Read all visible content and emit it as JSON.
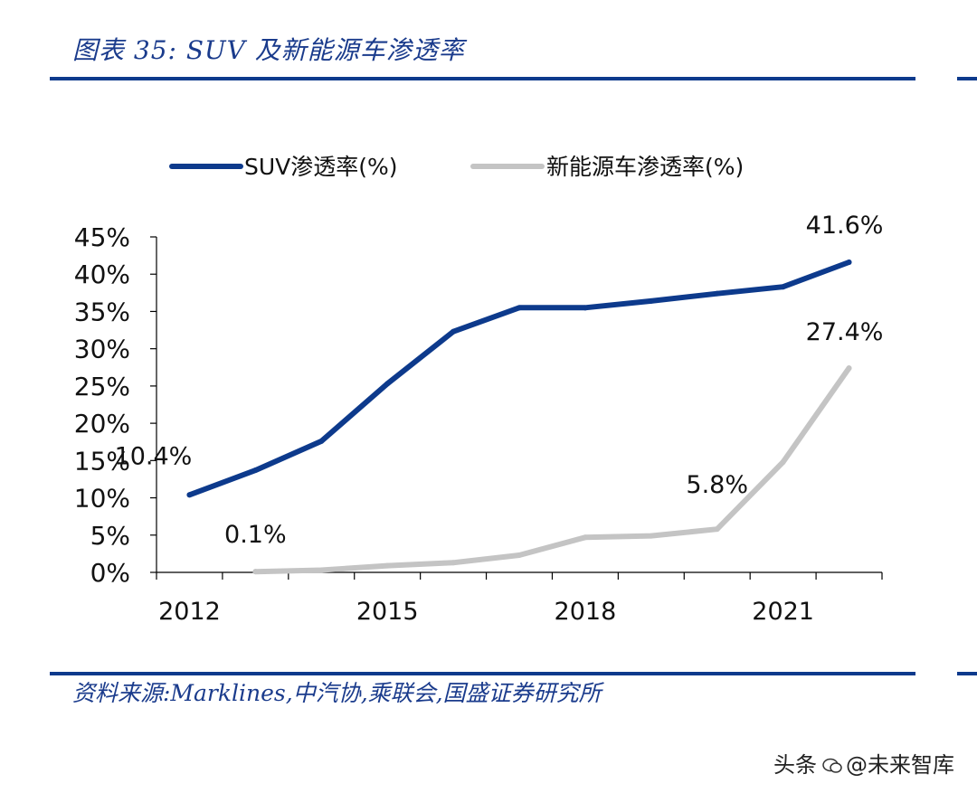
{
  "header": {
    "title": "图表 35:  SUV 及新能源车渗透率"
  },
  "footer": {
    "source": "资料来源:Marklines,中汽协,乘联会,国盛证券研究所"
  },
  "watermark": {
    "platform": "头条",
    "account": "@未来智库"
  },
  "colors": {
    "accent": "#0d3a8c",
    "suv": "#0d3a8c",
    "nev": "#c4c4c4"
  },
  "chart_data": {
    "type": "line",
    "title": "",
    "xlabel": "",
    "ylabel": "",
    "x": [
      2012,
      2013,
      2014,
      2015,
      2016,
      2017,
      2018,
      2019,
      2020,
      2021,
      2022
    ],
    "xtick_labels": [
      "2012",
      "2015",
      "2018",
      "2021"
    ],
    "ylim": [
      0,
      45
    ],
    "yticks": [
      0,
      5,
      10,
      15,
      20,
      25,
      30,
      35,
      40,
      45
    ],
    "ytick_labels": [
      "0%",
      "5%",
      "10%",
      "15%",
      "20%",
      "25%",
      "30%",
      "35%",
      "40%",
      "45%"
    ],
    "legend_position": "top",
    "grid": false,
    "series": [
      {
        "name": "SUV渗透率(%)",
        "color": "#0d3a8c",
        "x": [
          2012,
          2013,
          2014,
          2015,
          2016,
          2017,
          2018,
          2019,
          2020,
          2021,
          2022
        ],
        "values": [
          10.4,
          13.7,
          17.6,
          25.3,
          32.3,
          35.5,
          35.5,
          36.4,
          37.4,
          38.3,
          41.6
        ]
      },
      {
        "name": "新能源车渗透率(%)",
        "color": "#c4c4c4",
        "x": [
          2013,
          2014,
          2015,
          2016,
          2017,
          2018,
          2019,
          2020,
          2021,
          2022
        ],
        "values": [
          0.1,
          0.3,
          0.9,
          1.3,
          2.3,
          4.7,
          4.9,
          5.8,
          14.8,
          27.4
        ]
      }
    ],
    "annotations": [
      {
        "series": 0,
        "index": 0,
        "text": "10.4%"
      },
      {
        "series": 0,
        "index": 10,
        "text": "41.6%"
      },
      {
        "series": 1,
        "index": 0,
        "text": "0.1%"
      },
      {
        "series": 1,
        "index": 7,
        "text": "5.8%"
      },
      {
        "series": 1,
        "index": 9,
        "text": "27.4%"
      }
    ]
  }
}
